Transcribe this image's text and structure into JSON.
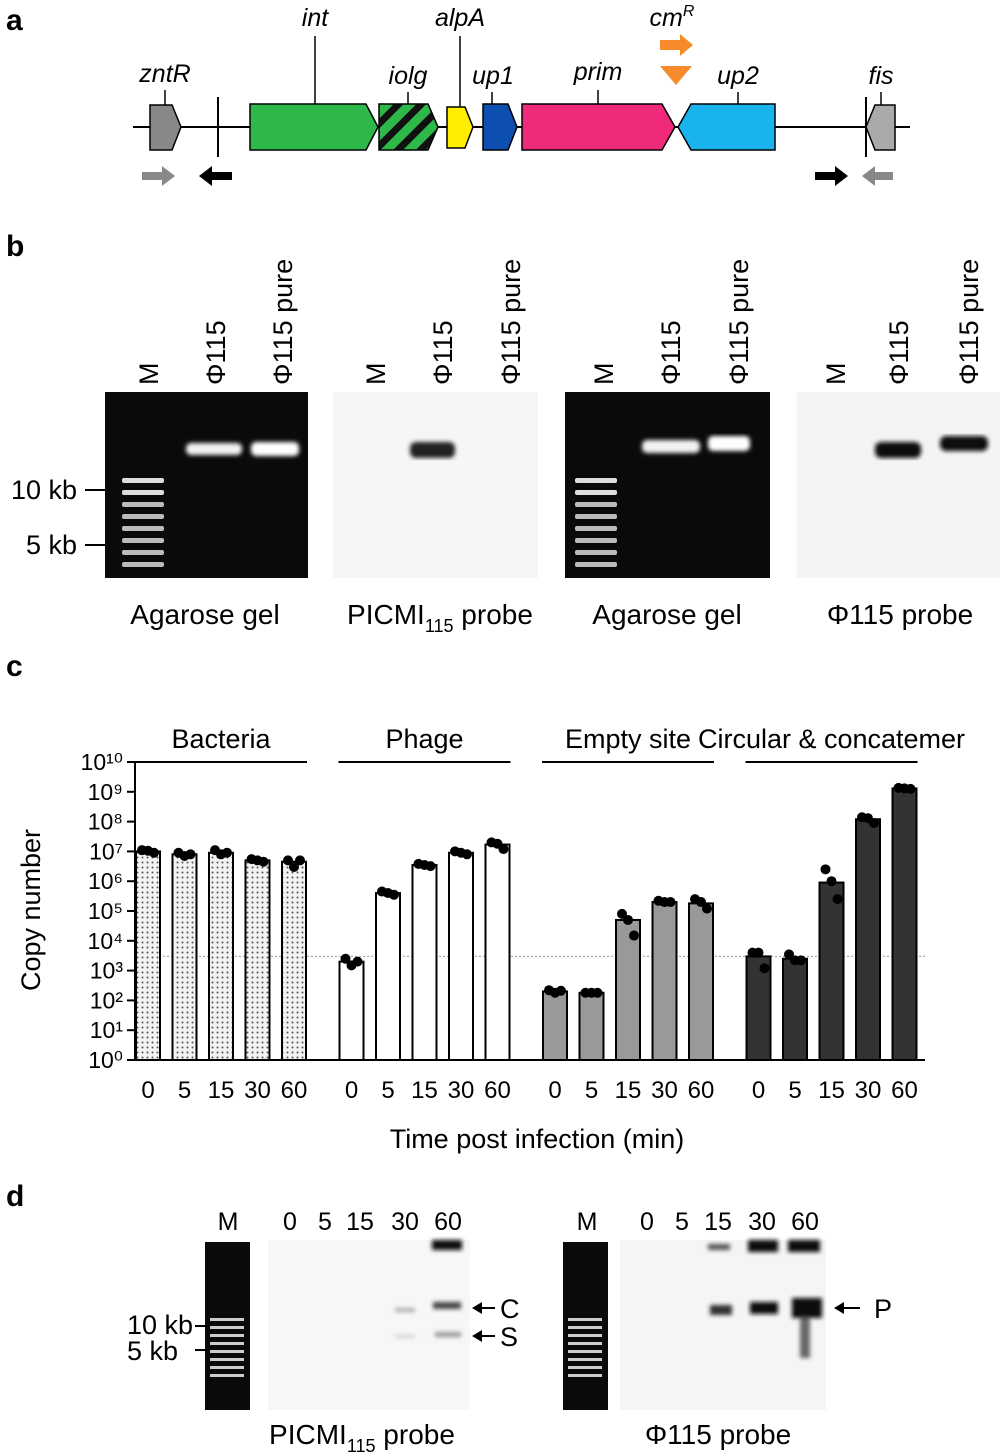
{
  "panel_a": {
    "letter": "a",
    "genes": [
      "zntR",
      "int",
      "iolg",
      "alpA",
      "up1",
      "prim",
      "up2",
      "fis"
    ],
    "cm_label": {
      "text": "cm",
      "sup": "R"
    }
  },
  "panel_b": {
    "letter": "b",
    "gels": [
      {
        "lanes": [
          "M",
          "Φ115",
          "Φ115 pure"
        ],
        "caption": {
          "text": "Agarose gel"
        }
      },
      {
        "lanes": [
          "M",
          "Φ115",
          "Φ115 pure"
        ],
        "caption": {
          "text": "PICMI",
          "sub": "115",
          "rest": " probe"
        }
      },
      {
        "lanes": [
          "M",
          "Φ115",
          "Φ115 pure"
        ],
        "caption": {
          "text": "Agarose gel"
        }
      },
      {
        "lanes": [
          "M",
          "Φ115",
          "Φ115 pure"
        ],
        "caption": {
          "text": "Φ115 probe"
        }
      }
    ],
    "markers": [
      "10 kb",
      "5 kb"
    ]
  },
  "chart_data": {
    "type": "bar",
    "panel_label": "c",
    "y_label": "Copy number",
    "x_label": "Time post infection (min)",
    "categories": [
      "0",
      "5",
      "15",
      "30",
      "60"
    ],
    "log_scale": true,
    "ylim": [
      1,
      10000000000
    ],
    "yticks": [
      {
        "value": 1,
        "label": "10⁰"
      },
      {
        "value": 10,
        "label": "10¹"
      },
      {
        "value": 100,
        "label": "10²"
      },
      {
        "value": 1000,
        "label": "10³"
      },
      {
        "value": 10000,
        "label": "10⁴"
      },
      {
        "value": 100000,
        "label": "10⁵"
      },
      {
        "value": 1000000,
        "label": "10⁶"
      },
      {
        "value": 10000000,
        "label": "10⁷"
      },
      {
        "value": 100000000,
        "label": "10⁸"
      },
      {
        "value": 1000000000,
        "label": "10⁹"
      },
      {
        "value": 10000000000,
        "label": "10¹⁰"
      }
    ],
    "ref_line": 3000,
    "series": [
      {
        "name": "Bacteria",
        "color": "#eeeeee",
        "pattern": "dotted",
        "values": [
          10000000,
          8000000,
          9000000,
          5000000,
          4500000
        ],
        "points": [
          [
            11000000,
            10500000,
            9000000
          ],
          [
            9000000,
            7000000,
            8000000
          ],
          [
            11000000,
            8000000,
            9000000
          ],
          [
            5500000,
            5000000,
            4500000
          ],
          [
            5000000,
            3000000,
            5000000
          ]
        ]
      },
      {
        "name": "Phage",
        "color": "#ffffff",
        "values": [
          2000,
          400000,
          3500000,
          9000000,
          17000000
        ],
        "points": [
          [
            2500,
            1500,
            2000
          ],
          [
            450000,
            400000,
            350000
          ],
          [
            3800000,
            3500000,
            3200000
          ],
          [
            10000000,
            9000000,
            8000000
          ],
          [
            20000000,
            18000000,
            12000000
          ]
        ]
      },
      {
        "name": "Empty site",
        "color": "#999999",
        "values": [
          200,
          180,
          50000,
          200000,
          180000
        ],
        "points": [
          [
            220,
            180,
            210
          ],
          [
            180,
            180,
            180
          ],
          [
            80000,
            50000,
            15000
          ],
          [
            220000,
            200000,
            200000
          ],
          [
            250000,
            200000,
            120000
          ]
        ]
      },
      {
        "name": "Circular & concatemer",
        "color": "#333333",
        "values": [
          3000,
          2500,
          900000,
          120000000,
          1300000000
        ],
        "points": [
          [
            4000,
            4000,
            1200
          ],
          [
            3500,
            2200,
            2200
          ],
          [
            2500000,
            1000000,
            250000
          ],
          [
            140000000,
            130000000,
            90000000
          ],
          [
            1350000000,
            1300000000,
            1250000000
          ]
        ]
      }
    ]
  },
  "panel_d": {
    "letter": "d",
    "blots": [
      {
        "lanes": [
          "M",
          "0",
          "5",
          "15",
          "30",
          "60"
        ],
        "caption": {
          "text": "PICMI",
          "sub": "115",
          "rest": " probe"
        }
      },
      {
        "lanes": [
          "M",
          "0",
          "5",
          "15",
          "30",
          "60"
        ],
        "caption": {
          "text": "Φ115 probe"
        }
      }
    ],
    "markers": [
      "10 kb",
      "5 kb"
    ],
    "arrows": [
      "C",
      "S",
      "P"
    ]
  }
}
